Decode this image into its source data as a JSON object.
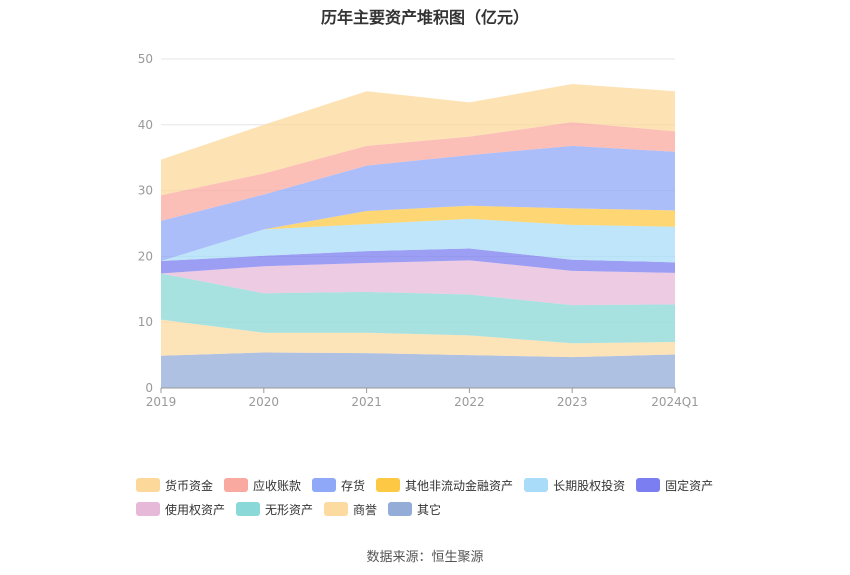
{
  "chart_data": {
    "type": "area",
    "title": "历年主要资产堆积图（亿元）",
    "categories": [
      "2019",
      "2020",
      "2021",
      "2022",
      "2023",
      "2024Q1"
    ],
    "ylim": [
      0,
      50
    ],
    "yticks": [
      0,
      10,
      20,
      30,
      40,
      50
    ],
    "stack_order": [
      "其它",
      "商誉",
      "无形资产",
      "使用权资产",
      "固定资产",
      "长期股权投资",
      "其他非流动金融资产",
      "存货",
      "应收账款",
      "货币资金"
    ],
    "series": [
      {
        "name": "货币资金",
        "color": "#fcd89a",
        "values": [
          5.4,
          7.4,
          8.3,
          5.2,
          5.8,
          6.1
        ]
      },
      {
        "name": "应收账款",
        "color": "#f9a99f",
        "values": [
          3.9,
          3.2,
          3.0,
          2.8,
          3.6,
          3.1
        ]
      },
      {
        "name": "存货",
        "color": "#8fa8f8",
        "values": [
          6.1,
          5.3,
          6.9,
          7.7,
          9.5,
          8.9
        ]
      },
      {
        "name": "其他非流动金融资产",
        "color": "#fdc844",
        "values": [
          0.0,
          0.0,
          2.0,
          2.0,
          2.5,
          2.5
        ]
      },
      {
        "name": "长期股权投资",
        "color": "#a8dcf8",
        "values": [
          0.0,
          4.0,
          4.1,
          4.5,
          5.3,
          5.4
        ]
      },
      {
        "name": "固定资产",
        "color": "#7b7ef0",
        "values": [
          1.9,
          1.6,
          1.8,
          1.8,
          1.7,
          1.6
        ]
      },
      {
        "name": "使用权资产",
        "color": "#e7b9d9",
        "values": [
          0.0,
          4.1,
          4.4,
          5.2,
          5.2,
          4.8
        ]
      },
      {
        "name": "无形资产",
        "color": "#8ad8d7",
        "values": [
          7.0,
          6.0,
          6.2,
          6.2,
          5.8,
          5.7
        ]
      },
      {
        "name": "商誉",
        "color": "#fcdaa0",
        "values": [
          5.5,
          3.0,
          3.1,
          3.0,
          2.1,
          1.9
        ]
      },
      {
        "name": "其它",
        "color": "#93acd8",
        "values": [
          4.9,
          5.4,
          5.3,
          5.0,
          4.7,
          5.1
        ]
      }
    ],
    "grid": true,
    "legend_position": "bottom"
  },
  "source_text": "数据来源：恒生聚源"
}
